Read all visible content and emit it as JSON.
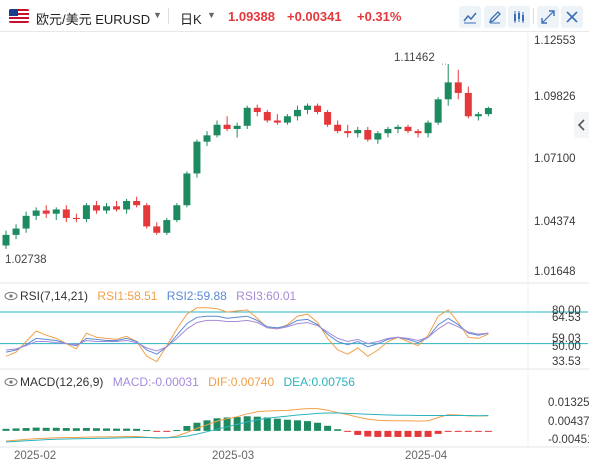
{
  "symbol": {
    "name": "欧元/美元 EURUSD",
    "interval": "日K",
    "price": "1.09388",
    "change": "+0.00341",
    "change_pct": "+0.31%"
  },
  "toolbar_icons": [
    "us-flag-icon",
    "chevron-down-icon",
    "chevron-down-icon",
    "line-chart-icon",
    "edit-icon",
    "indicators-icon",
    "expand-icon",
    "close-icon"
  ],
  "colors": {
    "up": "#1e8a5f",
    "down": "#e5383b",
    "rsi1": "#f0a04a",
    "rsi2": "#5a8bd6",
    "rsi3": "#a58bd8",
    "dif": "#f0a04a",
    "dea": "#2bb3c0",
    "level_line": "#2bb3c0"
  },
  "main": {
    "y_ticks": [
      "1.12553",
      "1.09826",
      "1.07100",
      "1.04374",
      "1.01648"
    ],
    "high_label": "1.11462",
    "low_label": "1.02738",
    "x_labels": [
      "2025-02",
      "2025-03",
      "2025-04"
    ]
  },
  "rsi": {
    "title": "RSI(7,14,21)",
    "rsi1": "RSI1:58.51",
    "rsi2": "RSI2:59.88",
    "rsi3": "RSI3:60.01",
    "y_ticks": [
      "80.00",
      "64.53",
      "59.03",
      "50.00",
      "33.53"
    ]
  },
  "macd": {
    "title": "MACD(12,26,9)",
    "macd": "MACD:-0.00031",
    "dif": "DIF:0.00740",
    "dea": "DEA:0.00756",
    "y_ticks": [
      "0.01325",
      "0.00437",
      "-0.00451"
    ]
  },
  "chart_data": [
    {
      "type": "candlestick",
      "title": "",
      "series": [
        {
          "name": "EURUSD",
          "ohlc": [
            [
              1.029,
              1.036,
              1.0274,
              1.034
            ],
            [
              1.034,
              1.039,
              1.032,
              1.037
            ],
            [
              1.037,
              1.045,
              1.035,
              1.043
            ],
            [
              1.043,
              1.047,
              1.041,
              1.0455
            ],
            [
              1.0455,
              1.048,
              1.042,
              1.044
            ],
            [
              1.044,
              1.047,
              1.041,
              1.046
            ],
            [
              1.046,
              1.048,
              1.04,
              1.042
            ],
            [
              1.042,
              1.044,
              1.04,
              1.0415
            ],
            [
              1.0415,
              1.049,
              1.04,
              1.048
            ],
            [
              1.048,
              1.05,
              1.044,
              1.0455
            ],
            [
              1.0455,
              1.049,
              1.044,
              1.0475
            ],
            [
              1.0475,
              1.05,
              1.045,
              1.046
            ],
            [
              1.046,
              1.051,
              1.044,
              1.05
            ],
            [
              1.05,
              1.052,
              1.047,
              1.048
            ],
            [
              1.048,
              1.049,
              1.037,
              1.038
            ],
            [
              1.038,
              1.04,
              1.034,
              1.035
            ],
            [
              1.035,
              1.042,
              1.034,
              1.041
            ],
            [
              1.041,
              1.049,
              1.04,
              1.048
            ],
            [
              1.048,
              1.064,
              1.047,
              1.063
            ],
            [
              1.063,
              1.079,
              1.061,
              1.078
            ],
            [
              1.078,
              1.083,
              1.076,
              1.081
            ],
            [
              1.081,
              1.088,
              1.08,
              1.086
            ],
            [
              1.086,
              1.09,
              1.083,
              1.084
            ],
            [
              1.084,
              1.087,
              1.08,
              1.0855
            ],
            [
              1.0855,
              1.095,
              1.084,
              1.094
            ],
            [
              1.094,
              1.0955,
              1.09,
              1.092
            ],
            [
              1.092,
              1.093,
              1.087,
              1.088
            ],
            [
              1.088,
              1.091,
              1.086,
              1.087
            ],
            [
              1.087,
              1.091,
              1.086,
              1.09
            ],
            [
              1.09,
              1.095,
              1.088,
              1.093
            ],
            [
              1.093,
              1.096,
              1.091,
              1.095
            ],
            [
              1.095,
              1.096,
              1.091,
              1.092
            ],
            [
              1.092,
              1.093,
              1.085,
              1.086
            ],
            [
              1.086,
              1.088,
              1.082,
              1.083
            ],
            [
              1.083,
              1.086,
              1.08,
              1.082
            ],
            [
              1.082,
              1.085,
              1.08,
              1.0835
            ],
            [
              1.0835,
              1.085,
              1.078,
              1.079
            ],
            [
              1.079,
              1.083,
              1.077,
              1.082
            ],
            [
              1.082,
              1.085,
              1.08,
              1.084
            ],
            [
              1.084,
              1.086,
              1.082,
              1.085
            ],
            [
              1.085,
              1.086,
              1.082,
              1.083
            ],
            [
              1.083,
              1.084,
              1.08,
              1.082
            ],
            [
              1.082,
              1.088,
              1.08,
              1.087
            ],
            [
              1.087,
              1.099,
              1.086,
              1.098
            ],
            [
              1.098,
              1.1146,
              1.095,
              1.106
            ],
            [
              1.106,
              1.112,
              1.098,
              1.101
            ],
            [
              1.101,
              1.104,
              1.089,
              1.09
            ],
            [
              1.09,
              1.092,
              1.088,
              1.091
            ],
            [
              1.091,
              1.0945,
              1.09,
              1.0939
            ]
          ]
        }
      ]
    },
    {
      "type": "line",
      "title": "RSI(7,14,21)",
      "series": [
        {
          "name": "RSI1",
          "values": [
            38,
            42,
            52,
            62,
            58,
            55,
            50,
            45,
            60,
            56,
            55,
            54,
            57,
            52,
            38,
            33,
            48,
            64,
            78,
            84,
            84,
            83,
            80,
            81,
            82,
            74,
            65,
            64,
            68,
            76,
            78,
            70,
            55,
            44,
            40,
            46,
            38,
            44,
            52,
            56,
            52,
            48,
            58,
            76,
            82,
            70,
            56,
            55,
            59
          ]
        },
        {
          "name": "RSI2",
          "values": [
            42,
            44,
            49,
            55,
            54,
            53,
            50,
            48,
            55,
            54,
            53,
            53,
            55,
            52,
            44,
            40,
            47,
            58,
            69,
            75,
            76,
            76,
            74,
            75,
            76,
            72,
            66,
            65,
            67,
            72,
            73,
            68,
            59,
            52,
            49,
            52,
            47,
            50,
            54,
            56,
            54,
            51,
            56,
            68,
            74,
            68,
            60,
            58,
            60
          ]
        },
        {
          "name": "RSI3",
          "values": [
            44,
            45,
            48,
            52,
            52,
            51,
            50,
            49,
            53,
            52,
            52,
            52,
            53,
            51,
            46,
            43,
            47,
            55,
            64,
            70,
            72,
            72,
            71,
            71,
            72,
            70,
            65,
            64,
            66,
            69,
            70,
            67,
            61,
            55,
            52,
            54,
            50,
            52,
            55,
            56,
            55,
            53,
            56,
            64,
            70,
            66,
            61,
            59,
            60
          ]
        }
      ]
    },
    {
      "type": "bar",
      "title": "MACD(12,26,9)",
      "series": [
        {
          "name": "MACD",
          "values": [
            0.001,
            0.0012,
            0.0014,
            0.0016,
            0.0015,
            0.0015,
            0.0014,
            0.0013,
            0.0014,
            0.0013,
            0.0012,
            0.0011,
            0.0011,
            0.001,
            0.0004,
            -0.0002,
            -0.0003,
            0.0004,
            0.0024,
            0.004,
            0.0052,
            0.0062,
            0.0066,
            0.0068,
            0.0072,
            0.007,
            0.0066,
            0.006,
            0.0055,
            0.0052,
            0.0048,
            0.004,
            0.0025,
            0.0008,
            -0.0003,
            -0.002,
            -0.0028,
            -0.003,
            -0.003,
            -0.003,
            -0.003,
            -0.003,
            -0.003,
            -0.0015,
            -0.0005,
            -0.0003,
            -0.0003,
            -0.0003,
            -0.0003
          ]
        },
        {
          "name": "DIF",
          "values": [
            -0.005,
            -0.0046,
            -0.0042,
            -0.0038,
            -0.0036,
            -0.0034,
            -0.0033,
            -0.0033,
            -0.0031,
            -0.003,
            -0.003,
            -0.0029,
            -0.0028,
            -0.0028,
            -0.0032,
            -0.0036,
            -0.0034,
            -0.0026,
            -0.0008,
            0.0012,
            0.003,
            0.0048,
            0.006,
            0.007,
            0.0084,
            0.0094,
            0.0098,
            0.01,
            0.0101,
            0.0106,
            0.011,
            0.011,
            0.0102,
            0.009,
            0.008,
            0.0068,
            0.0058,
            0.0052,
            0.005,
            0.005,
            0.005,
            0.0048,
            0.005,
            0.0066,
            0.008,
            0.0078,
            0.0074,
            0.0074,
            0.0074
          ]
        },
        {
          "name": "DEA",
          "values": [
            -0.0055,
            -0.0052,
            -0.0049,
            -0.0046,
            -0.0043,
            -0.0041,
            -0.004,
            -0.0039,
            -0.0038,
            -0.0037,
            -0.0036,
            -0.0035,
            -0.0034,
            -0.0033,
            -0.0033,
            -0.0034,
            -0.0034,
            -0.0032,
            -0.0026,
            -0.0016,
            -0.0004,
            0.0008,
            0.002,
            0.0032,
            0.0044,
            0.0054,
            0.0062,
            0.0068,
            0.0073,
            0.0078,
            0.0082,
            0.0086,
            0.0088,
            0.0088,
            0.0086,
            0.0084,
            0.0082,
            0.008,
            0.0078,
            0.0077,
            0.0077,
            0.0076,
            0.0076,
            0.0076,
            0.0076,
            0.0076,
            0.0076,
            0.0075,
            0.0076
          ]
        }
      ]
    }
  ]
}
